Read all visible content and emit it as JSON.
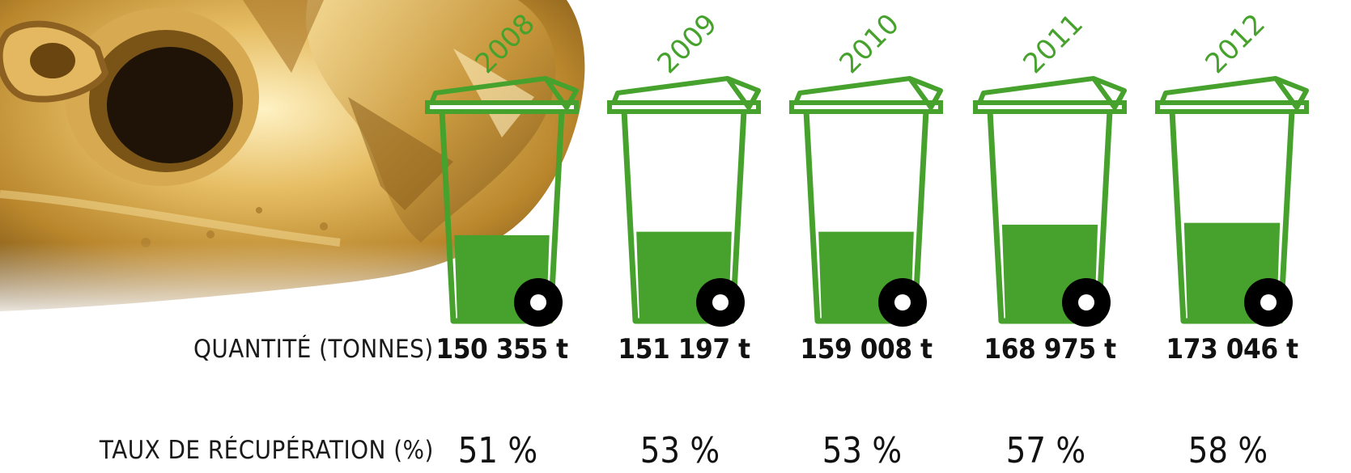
{
  "labels": {
    "quantity": "QUANTITÉ (TONNES)",
    "rate": "TAUX DE RÉCUPÉRATION (%)"
  },
  "colors": {
    "bin": "#46a22d",
    "wheel": "#000000",
    "gold": "#c99a3a"
  },
  "chart_data": {
    "type": "bar",
    "style": "pictograph-bins",
    "categories": [
      "2008",
      "2009",
      "2010",
      "2011",
      "2012"
    ],
    "series": [
      {
        "values": [
          150355,
          151197,
          159008,
          168975,
          173046
        ]
      },
      {
        "values": [
          51,
          53,
          53,
          57,
          58
        ]
      }
    ],
    "quantity_labels": [
      "150 355 t",
      "151 197 t",
      "159 008 t",
      "168 975 t",
      "173 046 t"
    ],
    "rate_labels": [
      "51 %",
      "53 %",
      "53 %",
      "57 %",
      "58 %"
    ],
    "ylim": [
      0,
      100
    ],
    "grid": false,
    "legend": "none"
  }
}
